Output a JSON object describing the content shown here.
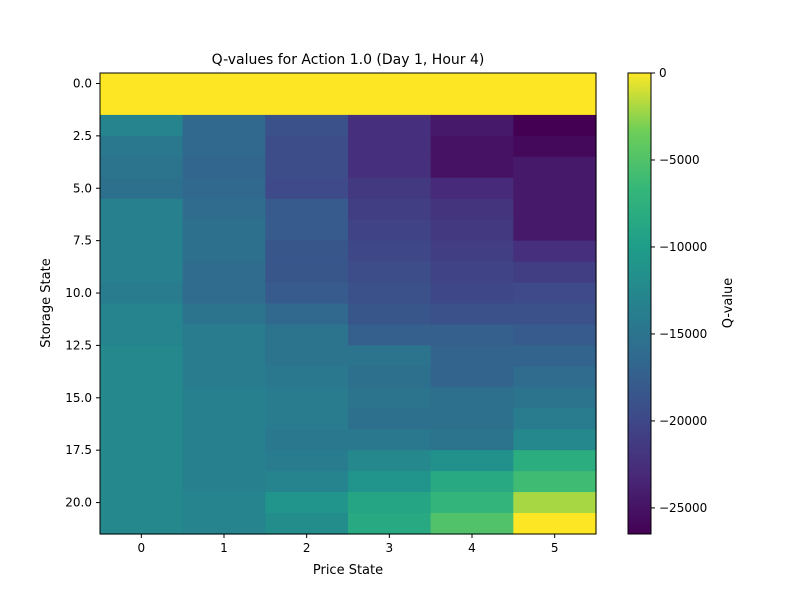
{
  "chart_data": {
    "type": "heatmap",
    "title": "Q-values for Action 1.0 (Day 1, Hour 4)",
    "xlabel": "Price State",
    "ylabel": "Storage State",
    "colorbar_label": "Q-value",
    "colormap": "viridis",
    "x_categories": [
      0,
      1,
      2,
      3,
      4,
      5
    ],
    "y_categories": [
      0,
      1,
      2,
      3,
      4,
      5,
      6,
      7,
      8,
      9,
      10,
      11,
      12,
      13,
      14,
      15,
      16,
      17,
      18,
      19,
      20,
      21
    ],
    "x_ticks": [
      "0",
      "1",
      "2",
      "3",
      "4",
      "5"
    ],
    "y_ticks": [
      {
        "value": 0.0,
        "label": "0.0"
      },
      {
        "value": 2.5,
        "label": "2.5"
      },
      {
        "value": 5.0,
        "label": "5.0"
      },
      {
        "value": 7.5,
        "label": "7.5"
      },
      {
        "value": 10.0,
        "label": "10.0"
      },
      {
        "value": 12.5,
        "label": "12.5"
      },
      {
        "value": 15.0,
        "label": "15.0"
      },
      {
        "value": 17.5,
        "label": "17.5"
      },
      {
        "value": 20.0,
        "label": "20.0"
      }
    ],
    "colorbar_range": [
      -26500,
      0
    ],
    "colorbar_ticks": [
      {
        "value": 0,
        "label": "0"
      },
      {
        "value": -5000,
        "label": "−5000"
      },
      {
        "value": -10000,
        "label": "−10000"
      },
      {
        "value": -15000,
        "label": "−15000"
      },
      {
        "value": -20000,
        "label": "−20000"
      },
      {
        "value": -25000,
        "label": "−25000"
      }
    ],
    "values": [
      [
        0,
        0,
        0,
        0,
        0,
        0
      ],
      [
        0,
        0,
        0,
        0,
        0,
        0
      ],
      [
        -13000,
        -16500,
        -19000,
        -22500,
        -24500,
        -26500
      ],
      [
        -14500,
        -16500,
        -19500,
        -22500,
        -25000,
        -25800
      ],
      [
        -15000,
        -16800,
        -19500,
        -22500,
        -25000,
        -24500
      ],
      [
        -15500,
        -16500,
        -19800,
        -21500,
        -23000,
        -24500
      ],
      [
        -13500,
        -16000,
        -18000,
        -21000,
        -22000,
        -24500
      ],
      [
        -13500,
        -15500,
        -18000,
        -20500,
        -21500,
        -24500
      ],
      [
        -13500,
        -15500,
        -18500,
        -20000,
        -21000,
        -22500
      ],
      [
        -13500,
        -16000,
        -18500,
        -19500,
        -20500,
        -21000
      ],
      [
        -14000,
        -16000,
        -18000,
        -19000,
        -20000,
        -19800
      ],
      [
        -13000,
        -15000,
        -16500,
        -18500,
        -19000,
        -19000
      ],
      [
        -13000,
        -14000,
        -15000,
        -17500,
        -17500,
        -18000
      ],
      [
        -12500,
        -14000,
        -15000,
        -15000,
        -17000,
        -17000
      ],
      [
        -12500,
        -14000,
        -14500,
        -15500,
        -17000,
        -16000
      ],
      [
        -12500,
        -13500,
        -14000,
        -15000,
        -15500,
        -15000
      ],
      [
        -12500,
        -13500,
        -14000,
        -15500,
        -15500,
        -14000
      ],
      [
        -12500,
        -13500,
        -14500,
        -14500,
        -15000,
        -12500
      ],
      [
        -12500,
        -13500,
        -14000,
        -12500,
        -11500,
        -8000
      ],
      [
        -12500,
        -13500,
        -13000,
        -11000,
        -8500,
        -6000
      ],
      [
        -12500,
        -13000,
        -11000,
        -9000,
        -7000,
        -2000
      ],
      [
        -12500,
        -13000,
        -12000,
        -8500,
        -5000,
        0
      ]
    ]
  }
}
